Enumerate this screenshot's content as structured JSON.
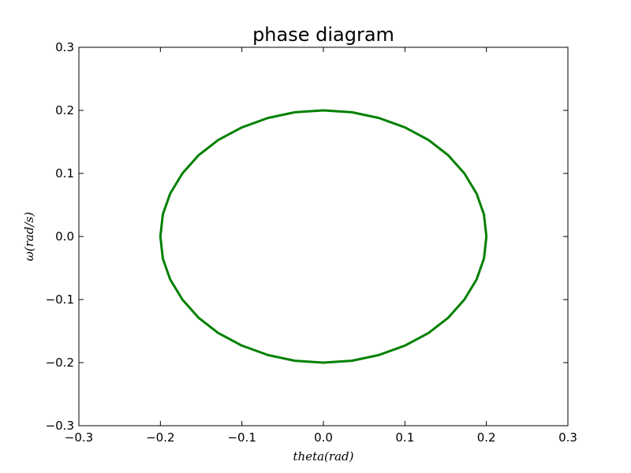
{
  "chart_data": {
    "type": "line",
    "title": "phase diagram",
    "xlabel": "theta(rad)",
    "ylabel": "ω(rad/s)",
    "xlim": [
      -0.3,
      0.3
    ],
    "ylim": [
      -0.3,
      0.3
    ],
    "xticks": [
      -0.3,
      -0.2,
      -0.1,
      0.0,
      0.1,
      0.2,
      0.3
    ],
    "yticks": [
      -0.3,
      -0.2,
      -0.1,
      0.0,
      0.1,
      0.2,
      0.3
    ],
    "xtick_labels": [
      "−0.3",
      "−0.2",
      "−0.1",
      "0.0",
      "0.1",
      "0.2",
      "0.3"
    ],
    "ytick_labels": [
      "−0.3",
      "−0.2",
      "−0.1",
      "0.0",
      "0.1",
      "0.2",
      "0.3"
    ],
    "grid": false,
    "series": [
      {
        "color": "#008000",
        "points": [
          [
            0.2,
            0.0
          ],
          [
            0.197,
            0.035
          ],
          [
            0.188,
            0.068
          ],
          [
            0.173,
            0.1
          ],
          [
            0.153,
            0.129
          ],
          [
            0.129,
            0.153
          ],
          [
            0.1,
            0.173
          ],
          [
            0.068,
            0.188
          ],
          [
            0.035,
            0.197
          ],
          [
            0.0,
            0.2
          ],
          [
            -0.035,
            0.197
          ],
          [
            -0.068,
            0.188
          ],
          [
            -0.1,
            0.173
          ],
          [
            -0.129,
            0.153
          ],
          [
            -0.153,
            0.129
          ],
          [
            -0.173,
            0.1
          ],
          [
            -0.188,
            0.068
          ],
          [
            -0.197,
            0.035
          ],
          [
            -0.2,
            0.0
          ],
          [
            -0.197,
            -0.035
          ],
          [
            -0.188,
            -0.068
          ],
          [
            -0.173,
            -0.1
          ],
          [
            -0.153,
            -0.129
          ],
          [
            -0.129,
            -0.153
          ],
          [
            -0.1,
            -0.173
          ],
          [
            -0.068,
            -0.188
          ],
          [
            -0.035,
            -0.197
          ],
          [
            0.0,
            -0.2
          ],
          [
            0.035,
            -0.197
          ],
          [
            0.068,
            -0.188
          ],
          [
            0.1,
            -0.173
          ],
          [
            0.129,
            -0.153
          ],
          [
            0.153,
            -0.129
          ],
          [
            0.173,
            -0.1
          ],
          [
            0.188,
            -0.068
          ],
          [
            0.197,
            -0.035
          ],
          [
            0.2,
            0.0
          ]
        ]
      }
    ]
  }
}
